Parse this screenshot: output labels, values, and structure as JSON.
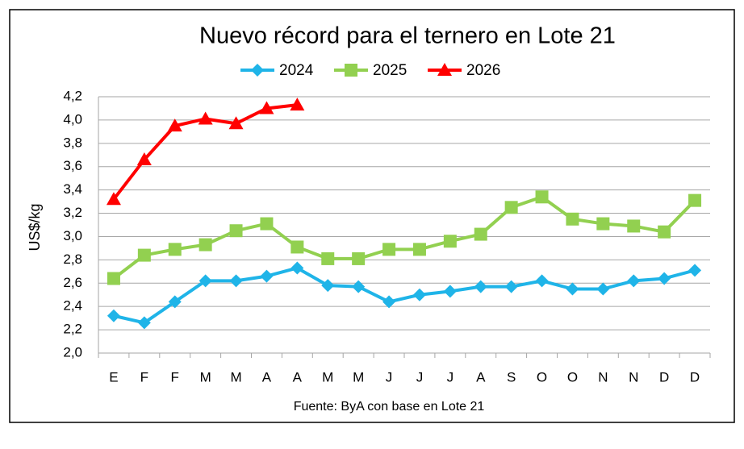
{
  "chart_data": {
    "type": "line",
    "title": "Nuevo récord para el ternero en Lote 21",
    "y_label": "US$/kg",
    "source": "Fuente: ByA con base en Lote 21",
    "categories": [
      "E",
      "F",
      "F",
      "M",
      "M",
      "A",
      "A",
      "M",
      "M",
      "J",
      "J",
      "J",
      "A",
      "S",
      "O",
      "O",
      "N",
      "N",
      "D",
      "D"
    ],
    "series": [
      {
        "name": "2024",
        "color": "#1fb4e8",
        "marker": "diamond",
        "values": [
          2.32,
          2.26,
          2.44,
          2.62,
          2.62,
          2.66,
          2.73,
          2.58,
          2.57,
          2.44,
          2.5,
          2.53,
          2.57,
          2.57,
          2.62,
          2.55,
          2.55,
          2.62,
          2.64,
          2.71
        ]
      },
      {
        "name": "2025",
        "color": "#92d050",
        "marker": "square",
        "values": [
          2.64,
          2.84,
          2.89,
          2.93,
          3.05,
          3.11,
          2.91,
          2.81,
          2.81,
          2.89,
          2.89,
          2.96,
          3.02,
          3.25,
          3.34,
          3.15,
          3.11,
          3.09,
          3.04,
          3.31
        ]
      },
      {
        "name": "2026",
        "color": "#ff0000",
        "marker": "triangle",
        "values": [
          3.32,
          3.66,
          3.95,
          4.01,
          3.97,
          4.1,
          4.13,
          null,
          null,
          null,
          null,
          null,
          null,
          null,
          null,
          null,
          null,
          null,
          null,
          null
        ]
      }
    ],
    "ylim": [
      2.0,
      4.2
    ],
    "yticks": [
      {
        "value": 2.0,
        "label": "2,0"
      },
      {
        "value": 2.2,
        "label": "2,2"
      },
      {
        "value": 2.4,
        "label": "2,4"
      },
      {
        "value": 2.6,
        "label": "2,6"
      },
      {
        "value": 2.8,
        "label": "2,8"
      },
      {
        "value": 3.0,
        "label": "3,0"
      },
      {
        "value": 3.2,
        "label": "3,2"
      },
      {
        "value": 3.4,
        "label": "3,4"
      },
      {
        "value": 3.6,
        "label": "3,6"
      },
      {
        "value": 3.8,
        "label": "3,8"
      },
      {
        "value": 4.0,
        "label": "4,0"
      },
      {
        "value": 4.2,
        "label": "4,2"
      }
    ],
    "grid": true,
    "legend": "top"
  }
}
